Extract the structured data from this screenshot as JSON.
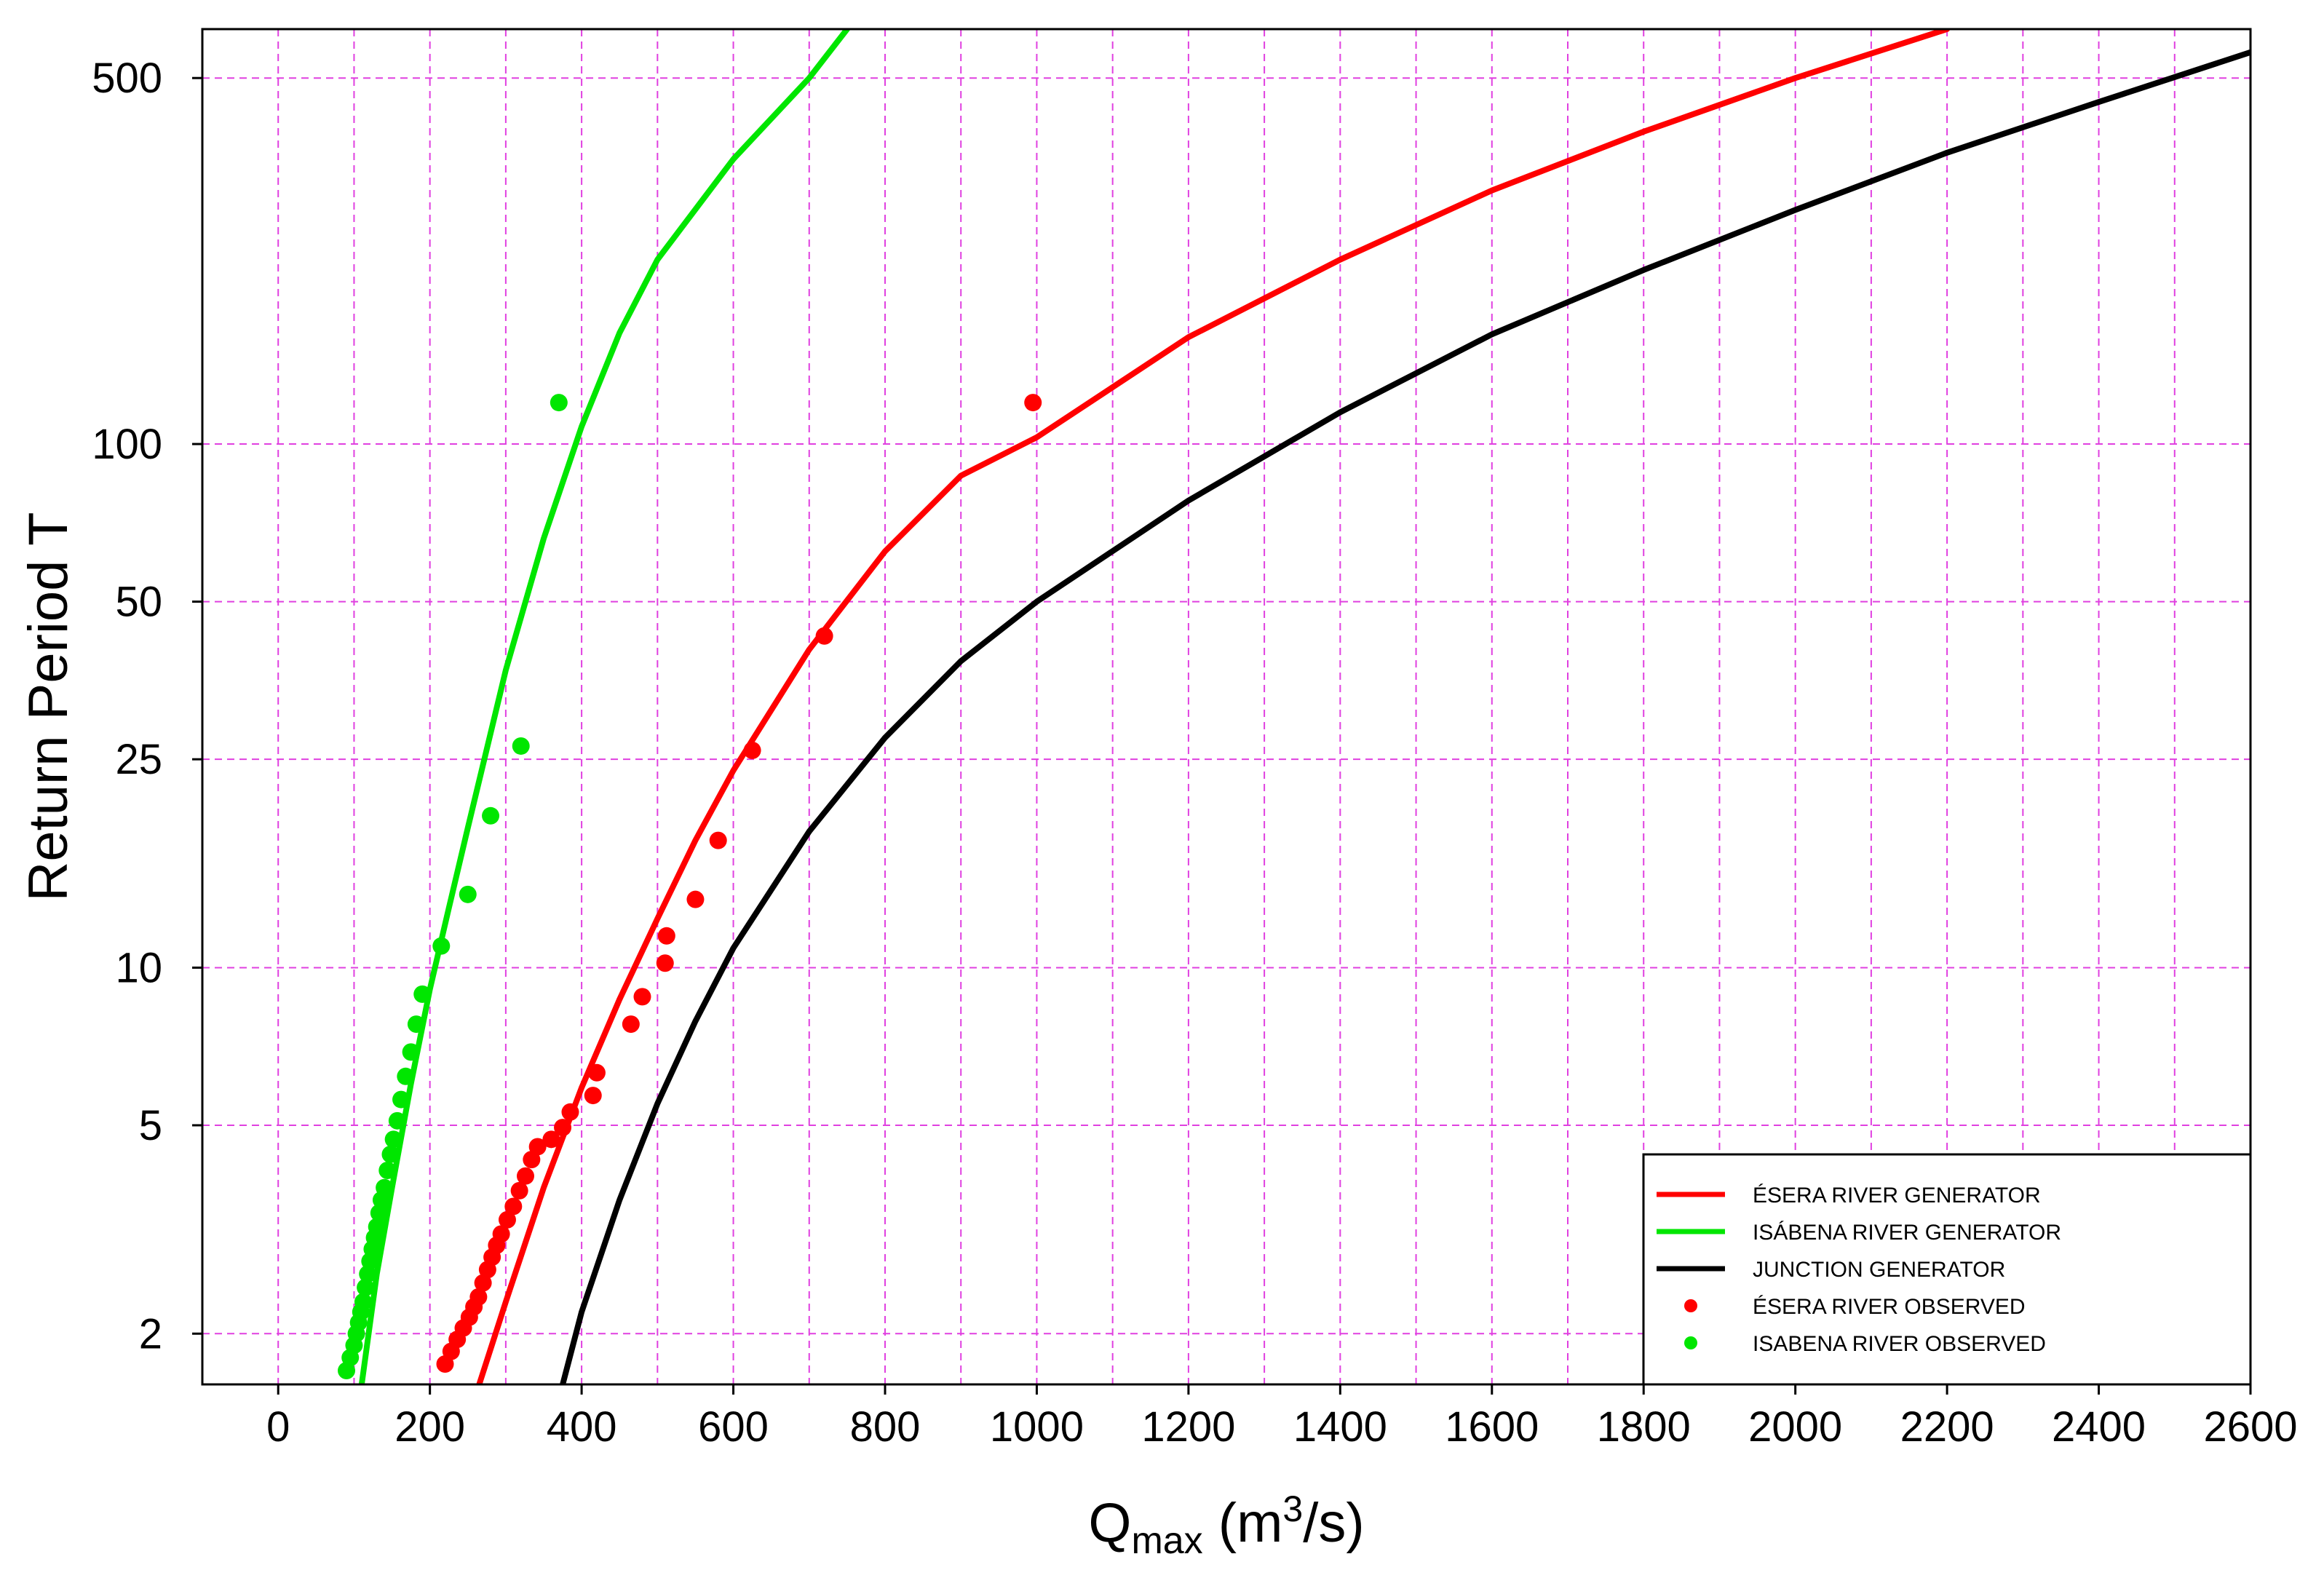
{
  "chart_data": {
    "type": "scatter",
    "title": "",
    "xlabel": {
      "main": "Q",
      "sub": "max",
      "unit_open": " (m",
      "unit_sup": "3",
      "unit_close": "/s)"
    },
    "ylabel": "Return Period T",
    "xlim": [
      -100,
      2600
    ],
    "ylim": [
      1.6,
      620
    ],
    "yscale": "log",
    "xticks": [
      0,
      200,
      400,
      600,
      800,
      1000,
      1200,
      1400,
      1600,
      1800,
      2000,
      2200,
      2400,
      2600
    ],
    "xtick_labels": [
      "0",
      "200",
      "400",
      "600",
      "800",
      "1000",
      "1200",
      "1400",
      "1600",
      "1800",
      "2000",
      "2200",
      "2400",
      "2600"
    ],
    "yticks": [
      2,
      5,
      10,
      25,
      50,
      100,
      500
    ],
    "ytick_labels": [
      "2",
      "5",
      "10",
      "25",
      "50",
      "100",
      "500"
    ],
    "grid": true,
    "grid_color": "#e040e0",
    "legend_position": "bottom-right",
    "series": [
      {
        "name": "ÉSERA RIVER GENERATOR",
        "kind": "line",
        "color": "#ff0000",
        "x": [
          265,
          300,
          350,
          400,
          450,
          500,
          550,
          600,
          700,
          800,
          900,
          1000,
          1200,
          1400,
          1600,
          1800,
          2000,
          2200
        ],
        "y": [
          1.6,
          2.3,
          3.8,
          5.9,
          8.7,
          12.4,
          17.5,
          23.8,
          40.5,
          62.4,
          87,
          103,
          160,
          225,
          305,
          395,
          500,
          620
        ]
      },
      {
        "name": "ISÁBENA RIVER GENERATOR",
        "kind": "line",
        "color": "#00e600",
        "x": [
          110,
          130,
          150,
          175,
          200,
          225,
          250,
          300,
          350,
          400,
          450,
          500,
          600,
          700,
          750
        ],
        "y": [
          1.6,
          2.6,
          3.8,
          6.0,
          9.1,
          13.0,
          18.5,
          37,
          66,
          108,
          163,
          225,
          350,
          500,
          620
        ]
      },
      {
        "name": "JUNCTION GENERATOR",
        "kind": "line",
        "color": "#000000",
        "x": [
          375,
          400,
          450,
          500,
          550,
          600,
          700,
          800,
          900,
          1000,
          1200,
          1400,
          1600,
          1800,
          2000,
          2200,
          2400,
          2600
        ],
        "y": [
          1.6,
          2.2,
          3.6,
          5.5,
          7.9,
          10.9,
          18.2,
          27.5,
          38.5,
          50,
          78,
          115,
          162,
          215,
          280,
          360,
          450,
          560
        ]
      },
      {
        "name": "ÉSERA RIVER OBSERVED",
        "kind": "points",
        "color": "#ff0000",
        "x": [
          220,
          228,
          236,
          244,
          252,
          258,
          264,
          270,
          276,
          282,
          288,
          294,
          302,
          310,
          318,
          326,
          334,
          342,
          360,
          375,
          385,
          415,
          420,
          465,
          480,
          510,
          512,
          550,
          580,
          625,
          720,
          995
        ],
        "y": [
          1.75,
          1.85,
          1.95,
          2.05,
          2.15,
          2.25,
          2.35,
          2.5,
          2.65,
          2.8,
          2.95,
          3.1,
          3.3,
          3.5,
          3.75,
          4.0,
          4.3,
          4.55,
          4.7,
          4.95,
          5.3,
          5.7,
          6.3,
          7.8,
          8.8,
          10.2,
          11.5,
          13.5,
          17.5,
          26,
          43,
          120
        ]
      },
      {
        "name": "ISABENA RIVER OBSERVED",
        "kind": "points",
        "color": "#00e600",
        "x": [
          90,
          95,
          100,
          103,
          106,
          109,
          112,
          115,
          118,
          121,
          124,
          127,
          130,
          133,
          136,
          140,
          144,
          148,
          152,
          157,
          162,
          168,
          175,
          182,
          190,
          215,
          250,
          280,
          320,
          370
        ],
        "y": [
          1.7,
          1.8,
          1.9,
          2.0,
          2.1,
          2.2,
          2.3,
          2.45,
          2.6,
          2.75,
          2.9,
          3.05,
          3.2,
          3.4,
          3.6,
          3.8,
          4.1,
          4.4,
          4.7,
          5.1,
          5.6,
          6.2,
          6.9,
          7.8,
          8.9,
          11.0,
          13.8,
          19.5,
          26.5,
          120
        ]
      }
    ]
  }
}
